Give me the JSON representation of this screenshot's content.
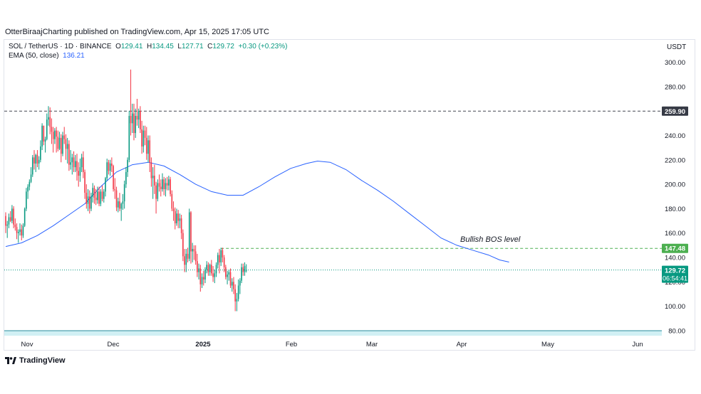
{
  "publisher": "OtterBiraajCharting published on TradingView.com, Apr 15, 2025 17:05 UTC",
  "legend": {
    "symbol": "SOL / TetherUS · 1D · BINANCE",
    "o_label": "O",
    "o": "129.41",
    "h_label": "H",
    "h": "134.45",
    "l_label": "L",
    "l": "127.71",
    "c_label": "C",
    "c": "129.72",
    "change": "+0.30 (+0.23%)",
    "ema_label": "EMA (50, close)",
    "ema_value": "136.21"
  },
  "unit": "USDT",
  "brand": "TradingView",
  "colors": {
    "up": "#089981",
    "down": "#f23645",
    "ema": "#2962ff",
    "bos": "#4caf50",
    "level": "#434651",
    "grid": "#f0f3fa"
  },
  "chart_data": {
    "type": "candlestick",
    "title": "",
    "xlabel": "",
    "ylabel": "",
    "ylim": [
      80,
      300
    ],
    "yticks": [
      "300.00",
      "280.00",
      "260.00",
      "240.00",
      "220.00",
      "200.00",
      "180.00",
      "160.00",
      "140.00",
      "120.00",
      "100.00",
      "80.00"
    ],
    "xticks": [
      "Nov",
      "Dec",
      "2025",
      "Feb",
      "Mar",
      "Apr",
      "May",
      "Jun"
    ],
    "annotations": {
      "resistance": {
        "value": 259.9,
        "label": "259.90"
      },
      "bos": {
        "value": 147.48,
        "label": "147.48",
        "text": "Bullish BOS level"
      },
      "last_price": {
        "value": 129.72,
        "label": "129.72",
        "countdown": "06:54:41"
      }
    },
    "candles_ohlc": [
      [
        174,
        177,
        160,
        166
      ],
      [
        166,
        170,
        156,
        167
      ],
      [
        167,
        176,
        164,
        173
      ],
      [
        173,
        178,
        169,
        170
      ],
      [
        170,
        183,
        168,
        180
      ],
      [
        180,
        182,
        164,
        167
      ],
      [
        167,
        172,
        162,
        165
      ],
      [
        165,
        168,
        155,
        160
      ],
      [
        160,
        163,
        152,
        161
      ],
      [
        161,
        168,
        158,
        163
      ],
      [
        163,
        167,
        154,
        158
      ],
      [
        158,
        168,
        156,
        166
      ],
      [
        166,
        181,
        165,
        180
      ],
      [
        180,
        197,
        178,
        194
      ],
      [
        194,
        200,
        188,
        198
      ],
      [
        198,
        204,
        195,
        202
      ],
      [
        202,
        214,
        201,
        208
      ],
      [
        208,
        224,
        206,
        222
      ],
      [
        222,
        228,
        212,
        217
      ],
      [
        217,
        225,
        210,
        224
      ],
      [
        224,
        228,
        214,
        217
      ],
      [
        217,
        223,
        212,
        220
      ],
      [
        220,
        236,
        218,
        231
      ],
      [
        231,
        250,
        228,
        248
      ],
      [
        248,
        248,
        232,
        235
      ],
      [
        235,
        239,
        226,
        237
      ],
      [
        237,
        258,
        236,
        253
      ],
      [
        253,
        264,
        248,
        255
      ],
      [
        255,
        263,
        241,
        247
      ],
      [
        247,
        254,
        233,
        243
      ],
      [
        243,
        247,
        226,
        237
      ],
      [
        237,
        246,
        233,
        244
      ],
      [
        244,
        247,
        226,
        239
      ],
      [
        239,
        244,
        227,
        229
      ],
      [
        229,
        243,
        228,
        238
      ],
      [
        238,
        241,
        218,
        225
      ],
      [
        225,
        243,
        223,
        240
      ],
      [
        240,
        247,
        233,
        237
      ],
      [
        237,
        241,
        220,
        229
      ],
      [
        229,
        238,
        217,
        233
      ],
      [
        233,
        236,
        211,
        216
      ],
      [
        216,
        228,
        212,
        218
      ],
      [
        218,
        225,
        208,
        222
      ],
      [
        222,
        227,
        210,
        214
      ],
      [
        214,
        224,
        210,
        219
      ],
      [
        219,
        225,
        203,
        211
      ],
      [
        211,
        218,
        198,
        207
      ],
      [
        207,
        221,
        202,
        214
      ],
      [
        214,
        225,
        210,
        222
      ],
      [
        222,
        227,
        205,
        210
      ],
      [
        210,
        212,
        188,
        193
      ],
      [
        193,
        200,
        180,
        184
      ],
      [
        184,
        196,
        178,
        190
      ],
      [
        190,
        195,
        176,
        180
      ],
      [
        180,
        193,
        178,
        190
      ],
      [
        190,
        201,
        185,
        197
      ],
      [
        197,
        199,
        184,
        189
      ],
      [
        189,
        196,
        183,
        187
      ],
      [
        187,
        198,
        184,
        194
      ],
      [
        194,
        198,
        182,
        184
      ],
      [
        184,
        196,
        182,
        194
      ],
      [
        194,
        199,
        186,
        188
      ],
      [
        188,
        196,
        185,
        194
      ],
      [
        194,
        206,
        190,
        205
      ],
      [
        205,
        221,
        203,
        218
      ],
      [
        218,
        220,
        208,
        211
      ],
      [
        211,
        220,
        207,
        217
      ],
      [
        217,
        222,
        210,
        215
      ],
      [
        215,
        216,
        194,
        196
      ],
      [
        196,
        205,
        188,
        195
      ],
      [
        195,
        198,
        178,
        181
      ],
      [
        181,
        189,
        177,
        186
      ],
      [
        186,
        193,
        178,
        180
      ],
      [
        180,
        185,
        170,
        184
      ],
      [
        184,
        192,
        179,
        186
      ],
      [
        186,
        203,
        180,
        200
      ],
      [
        200,
        214,
        197,
        210
      ],
      [
        210,
        222,
        206,
        220
      ],
      [
        220,
        260,
        218,
        256
      ],
      [
        256,
        294,
        240,
        250
      ],
      [
        250,
        266,
        242,
        258
      ],
      [
        258,
        266,
        236,
        242
      ],
      [
        242,
        262,
        238,
        256
      ],
      [
        256,
        270,
        248,
        253
      ],
      [
        253,
        262,
        246,
        260
      ],
      [
        260,
        264,
        242,
        245
      ],
      [
        245,
        252,
        225,
        231
      ],
      [
        231,
        248,
        226,
        244
      ],
      [
        244,
        248,
        232,
        238
      ],
      [
        238,
        247,
        220,
        225
      ],
      [
        225,
        240,
        218,
        236
      ],
      [
        236,
        240,
        210,
        218
      ],
      [
        218,
        222,
        198,
        205
      ],
      [
        205,
        214,
        188,
        207
      ],
      [
        207,
        216,
        192,
        199
      ],
      [
        199,
        202,
        176,
        188
      ],
      [
        188,
        204,
        186,
        201
      ],
      [
        201,
        208,
        194,
        198
      ],
      [
        198,
        204,
        190,
        196
      ],
      [
        196,
        209,
        194,
        204
      ],
      [
        204,
        206,
        191,
        196
      ],
      [
        196,
        205,
        190,
        201
      ],
      [
        201,
        206,
        195,
        199
      ],
      [
        199,
        207,
        195,
        204
      ],
      [
        204,
        206,
        190,
        192
      ],
      [
        192,
        195,
        178,
        180
      ],
      [
        180,
        186,
        170,
        178
      ],
      [
        178,
        181,
        163,
        168
      ],
      [
        168,
        180,
        166,
        176
      ],
      [
        176,
        179,
        164,
        170
      ],
      [
        170,
        176,
        164,
        172
      ],
      [
        172,
        175,
        155,
        160
      ],
      [
        160,
        163,
        137,
        141
      ],
      [
        141,
        147,
        128,
        134
      ],
      [
        134,
        147,
        128,
        143
      ],
      [
        143,
        148,
        136,
        139
      ],
      [
        139,
        180,
        137,
        177
      ],
      [
        177,
        178,
        135,
        145
      ],
      [
        145,
        152,
        136,
        147
      ],
      [
        147,
        150,
        138,
        145
      ],
      [
        145,
        150,
        134,
        137
      ],
      [
        137,
        143,
        124,
        128
      ],
      [
        128,
        135,
        122,
        131
      ],
      [
        131,
        134,
        112,
        118
      ],
      [
        118,
        127,
        115,
        124
      ],
      [
        124,
        129,
        117,
        122
      ],
      [
        122,
        132,
        119,
        130
      ],
      [
        130,
        137,
        127,
        134
      ],
      [
        134,
        136,
        125,
        128
      ],
      [
        128,
        135,
        125,
        134
      ],
      [
        134,
        138,
        125,
        127
      ],
      [
        127,
        133,
        120,
        124
      ],
      [
        124,
        130,
        119,
        127
      ],
      [
        127,
        136,
        124,
        134
      ],
      [
        134,
        144,
        131,
        142
      ],
      [
        142,
        147,
        127,
        136
      ],
      [
        136,
        148,
        133,
        146
      ],
      [
        146,
        148,
        136,
        140
      ],
      [
        140,
        142,
        128,
        132
      ],
      [
        132,
        134,
        122,
        124
      ],
      [
        124,
        129,
        118,
        126
      ],
      [
        126,
        130,
        121,
        128
      ],
      [
        128,
        131,
        115,
        117
      ],
      [
        117,
        123,
        112,
        120
      ],
      [
        120,
        124,
        110,
        114
      ],
      [
        114,
        118,
        96,
        104
      ],
      [
        104,
        111,
        96,
        106
      ],
      [
        106,
        122,
        104,
        117
      ],
      [
        117,
        123,
        110,
        121
      ],
      [
        121,
        135,
        119,
        132
      ],
      [
        132,
        135,
        125,
        128
      ],
      [
        128,
        136,
        125,
        133
      ],
      [
        129.41,
        134.45,
        127.71,
        129.72
      ]
    ],
    "ema50": [
      [
        0,
        149
      ],
      [
        10,
        152
      ],
      [
        20,
        158
      ],
      [
        30,
        166
      ],
      [
        40,
        175
      ],
      [
        50,
        184
      ],
      [
        60,
        198
      ],
      [
        70,
        210
      ],
      [
        80,
        216
      ],
      [
        90,
        218
      ],
      [
        100,
        215
      ],
      [
        110,
        208
      ],
      [
        120,
        200
      ],
      [
        130,
        194
      ],
      [
        140,
        191
      ],
      [
        150,
        191
      ],
      [
        160,
        198
      ],
      [
        170,
        206
      ],
      [
        180,
        213
      ],
      [
        190,
        217
      ],
      [
        197,
        219
      ],
      [
        205,
        218
      ],
      [
        215,
        212
      ],
      [
        225,
        203
      ],
      [
        235,
        195
      ],
      [
        245,
        186
      ],
      [
        255,
        176
      ],
      [
        265,
        166
      ],
      [
        275,
        156
      ],
      [
        285,
        150
      ],
      [
        295,
        146
      ],
      [
        305,
        142
      ],
      [
        312,
        138
      ],
      [
        318,
        136.21
      ]
    ]
  }
}
